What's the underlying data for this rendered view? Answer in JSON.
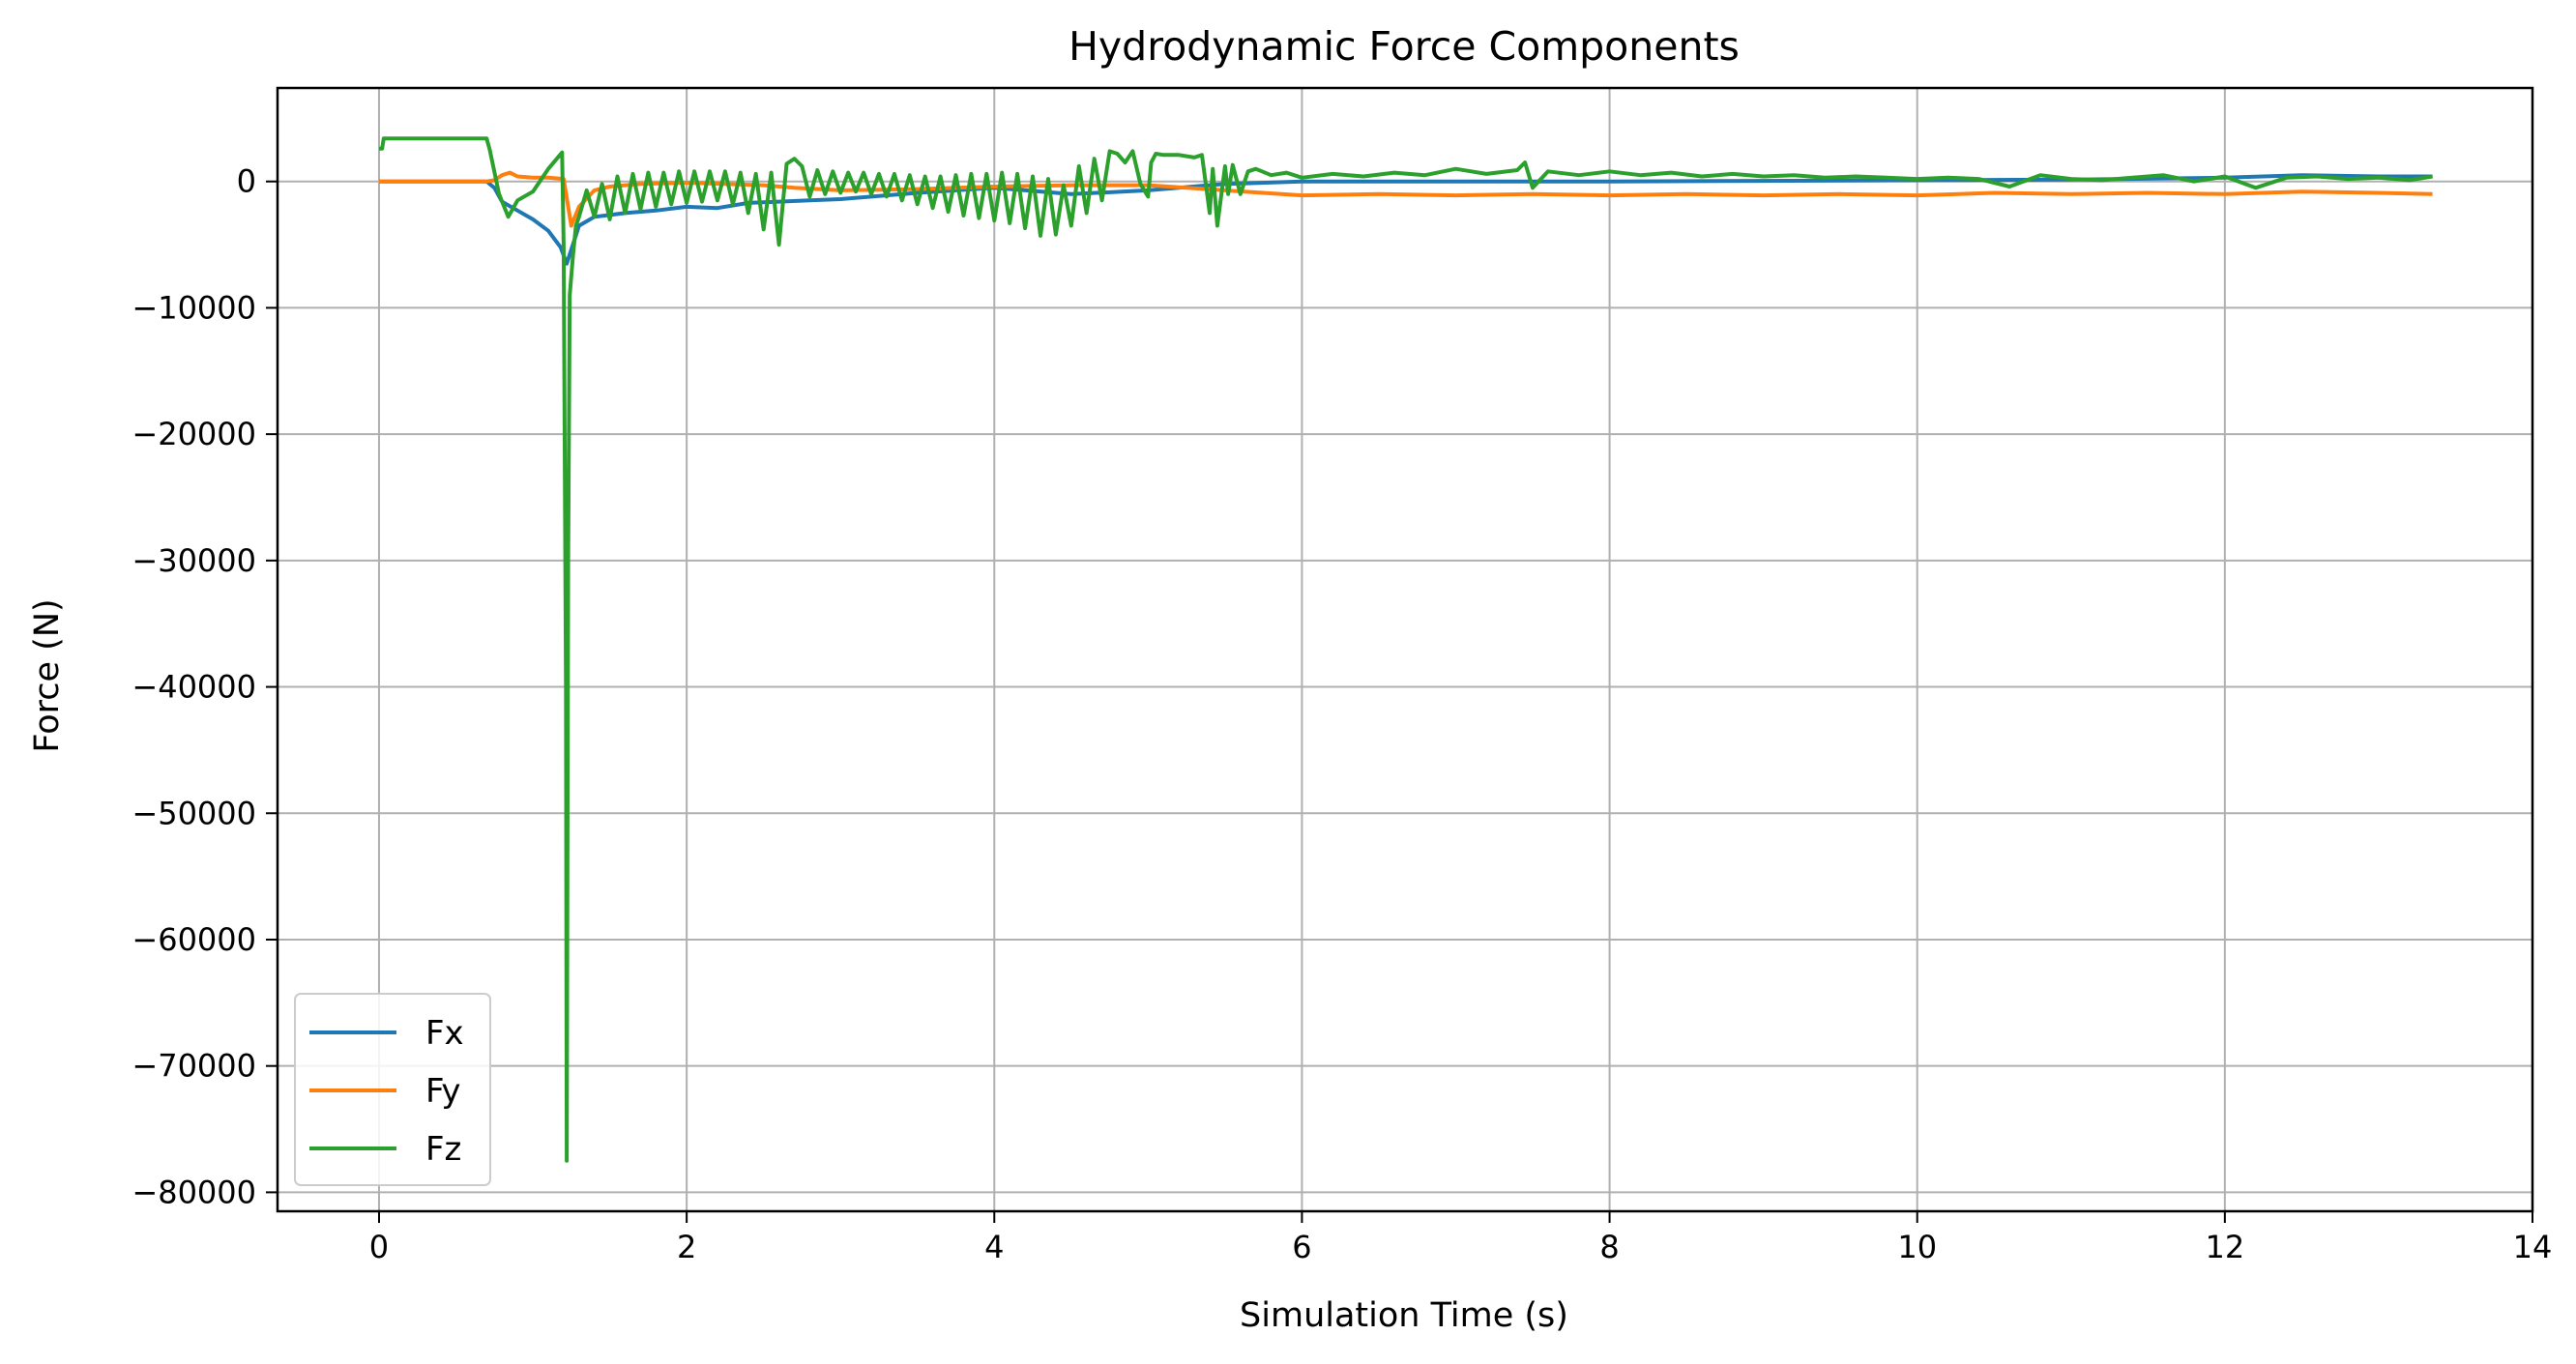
{
  "chart_data": {
    "type": "line",
    "title": "Hydrodynamic Force Components",
    "xlabel": "Simulation Time (s)",
    "ylabel": "Force (N)",
    "xlim": [
      -0.66,
      14.0
    ],
    "ylim": [
      -81500,
      7400
    ],
    "x_ticks": [
      0,
      2,
      4,
      6,
      8,
      10,
      12,
      14
    ],
    "x_tick_labels": [
      "0",
      "2",
      "4",
      "6",
      "8",
      "10",
      "12",
      "14"
    ],
    "y_ticks": [
      0,
      -10000,
      -20000,
      -30000,
      -40000,
      -50000,
      -60000,
      -70000,
      -80000
    ],
    "y_tick_labels": [
      "0",
      "−10000",
      "−20000",
      "−30000",
      "−40000",
      "−50000",
      "−60000",
      "−70000",
      "−80000"
    ],
    "grid": true,
    "legend_position": "lower-left",
    "series": [
      {
        "name": "Fx",
        "color": "#1f77b4",
        "x": [
          0,
          0.7,
          0.75,
          0.8,
          0.9,
          1.0,
          1.1,
          1.18,
          1.22,
          1.3,
          1.4,
          1.6,
          1.8,
          2.0,
          2.2,
          2.4,
          2.6,
          2.8,
          3.0,
          3.5,
          4.0,
          4.5,
          5.0,
          5.5,
          6.0,
          7.0,
          8.0,
          9.0,
          10.0,
          11.0,
          12.0,
          12.5,
          13.0,
          13.35
        ],
        "y": [
          0,
          0,
          -500,
          -1600,
          -2300,
          -3000,
          -3900,
          -5200,
          -6500,
          -3500,
          -2800,
          -2500,
          -2300,
          -2000,
          -2100,
          -1700,
          -1600,
          -1500,
          -1400,
          -900,
          -500,
          -1000,
          -700,
          -200,
          0,
          0,
          0,
          50,
          100,
          150,
          300,
          500,
          400,
          400
        ]
      },
      {
        "name": "Fy",
        "color": "#ff7f0e",
        "x": [
          0,
          0.7,
          0.75,
          0.8,
          0.85,
          0.9,
          1.0,
          1.1,
          1.2,
          1.25,
          1.3,
          1.4,
          1.5,
          1.7,
          2.0,
          2.5,
          2.7,
          3.0,
          3.5,
          4.0,
          4.5,
          5.0,
          5.5,
          6.0,
          6.5,
          7.0,
          7.5,
          8.0,
          8.5,
          9.0,
          9.5,
          10.0,
          10.5,
          11.0,
          11.5,
          12.0,
          12.5,
          13.0,
          13.35
        ],
        "y": [
          0,
          0,
          100,
          500,
          700,
          400,
          300,
          300,
          200,
          -3500,
          -2000,
          -700,
          -400,
          -200,
          -100,
          -300,
          -500,
          -700,
          -600,
          -400,
          -300,
          -300,
          -700,
          -1100,
          -1000,
          -1100,
          -1000,
          -1100,
          -1000,
          -1100,
          -1000,
          -1100,
          -900,
          -1000,
          -900,
          -1000,
          -800,
          -900,
          -1000
        ]
      },
      {
        "name": "Fz",
        "color": "#2ca02c",
        "x": [
          0,
          0.02,
          0.03,
          0.05,
          0.4,
          0.7,
          0.72,
          0.78,
          0.84,
          0.9,
          1.0,
          1.1,
          1.19,
          1.2,
          1.215,
          1.22,
          1.23,
          1.24,
          1.26,
          1.28,
          1.3,
          1.35,
          1.4,
          1.45,
          1.5,
          1.55,
          1.6,
          1.65,
          1.7,
          1.75,
          1.8,
          1.85,
          1.9,
          1.95,
          2.0,
          2.05,
          2.1,
          2.15,
          2.2,
          2.25,
          2.3,
          2.35,
          2.4,
          2.45,
          2.5,
          2.55,
          2.6,
          2.65,
          2.7,
          2.75,
          2.8,
          2.85,
          2.9,
          2.95,
          3.0,
          3.05,
          3.1,
          3.15,
          3.2,
          3.25,
          3.3,
          3.35,
          3.4,
          3.45,
          3.5,
          3.55,
          3.6,
          3.65,
          3.7,
          3.75,
          3.8,
          3.85,
          3.9,
          3.95,
          4.0,
          4.05,
          4.1,
          4.15,
          4.2,
          4.25,
          4.3,
          4.35,
          4.4,
          4.45,
          4.5,
          4.55,
          4.6,
          4.65,
          4.7,
          4.75,
          4.8,
          4.85,
          4.9,
          4.95,
          5.0,
          5.02,
          5.05,
          5.1,
          5.2,
          5.3,
          5.35,
          5.4,
          5.42,
          5.45,
          5.5,
          5.52,
          5.55,
          5.6,
          5.65,
          5.7,
          5.8,
          5.9,
          6.0,
          6.2,
          6.4,
          6.6,
          6.8,
          7.0,
          7.2,
          7.4,
          7.45,
          7.5,
          7.6,
          7.8,
          8.0,
          8.2,
          8.4,
          8.6,
          8.8,
          9.0,
          9.2,
          9.4,
          9.6,
          9.8,
          10.0,
          10.2,
          10.4,
          10.6,
          10.8,
          11.0,
          11.2,
          11.4,
          11.6,
          11.8,
          12.0,
          12.2,
          12.4,
          12.6,
          12.8,
          13.0,
          13.2,
          13.35
        ],
        "y": [
          2600,
          2600,
          3400,
          3400,
          3400,
          3400,
          2500,
          -1000,
          -2800,
          -1500,
          -800,
          1000,
          2300,
          -5000,
          -40000,
          -77500,
          -30000,
          -9000,
          -6000,
          -3500,
          -2800,
          -700,
          -2800,
          -200,
          -3000,
          400,
          -2500,
          600,
          -2200,
          700,
          -2000,
          700,
          -1800,
          800,
          -1700,
          800,
          -1600,
          800,
          -1500,
          800,
          -1800,
          700,
          -2500,
          600,
          -3800,
          700,
          -5000,
          1400,
          1800,
          1200,
          -1200,
          900,
          -1000,
          800,
          -900,
          700,
          -800,
          700,
          -1000,
          600,
          -1200,
          600,
          -1500,
          500,
          -1800,
          400,
          -2100,
          400,
          -2400,
          500,
          -2700,
          600,
          -2900,
          600,
          -3100,
          700,
          -3300,
          600,
          -3700,
          400,
          -4300,
          200,
          -4200,
          -300,
          -3500,
          1200,
          -2500,
          1800,
          -1500,
          2400,
          2200,
          1500,
          2400,
          -200,
          -1200,
          1500,
          2200,
          2100,
          2100,
          1900,
          2100,
          -2500,
          1000,
          -3500,
          1200,
          -1000,
          1300,
          -1000,
          800,
          1000,
          500,
          700,
          300,
          600,
          400,
          700,
          500,
          1000,
          600,
          900,
          1500,
          -500,
          800,
          500,
          800,
          500,
          700,
          400,
          600,
          400,
          500,
          300,
          400,
          300,
          200,
          300,
          200,
          -400,
          500,
          200,
          100,
          300,
          500,
          0,
          400,
          -500,
          300,
          400,
          200,
          300,
          100,
          400
        ]
      }
    ]
  }
}
